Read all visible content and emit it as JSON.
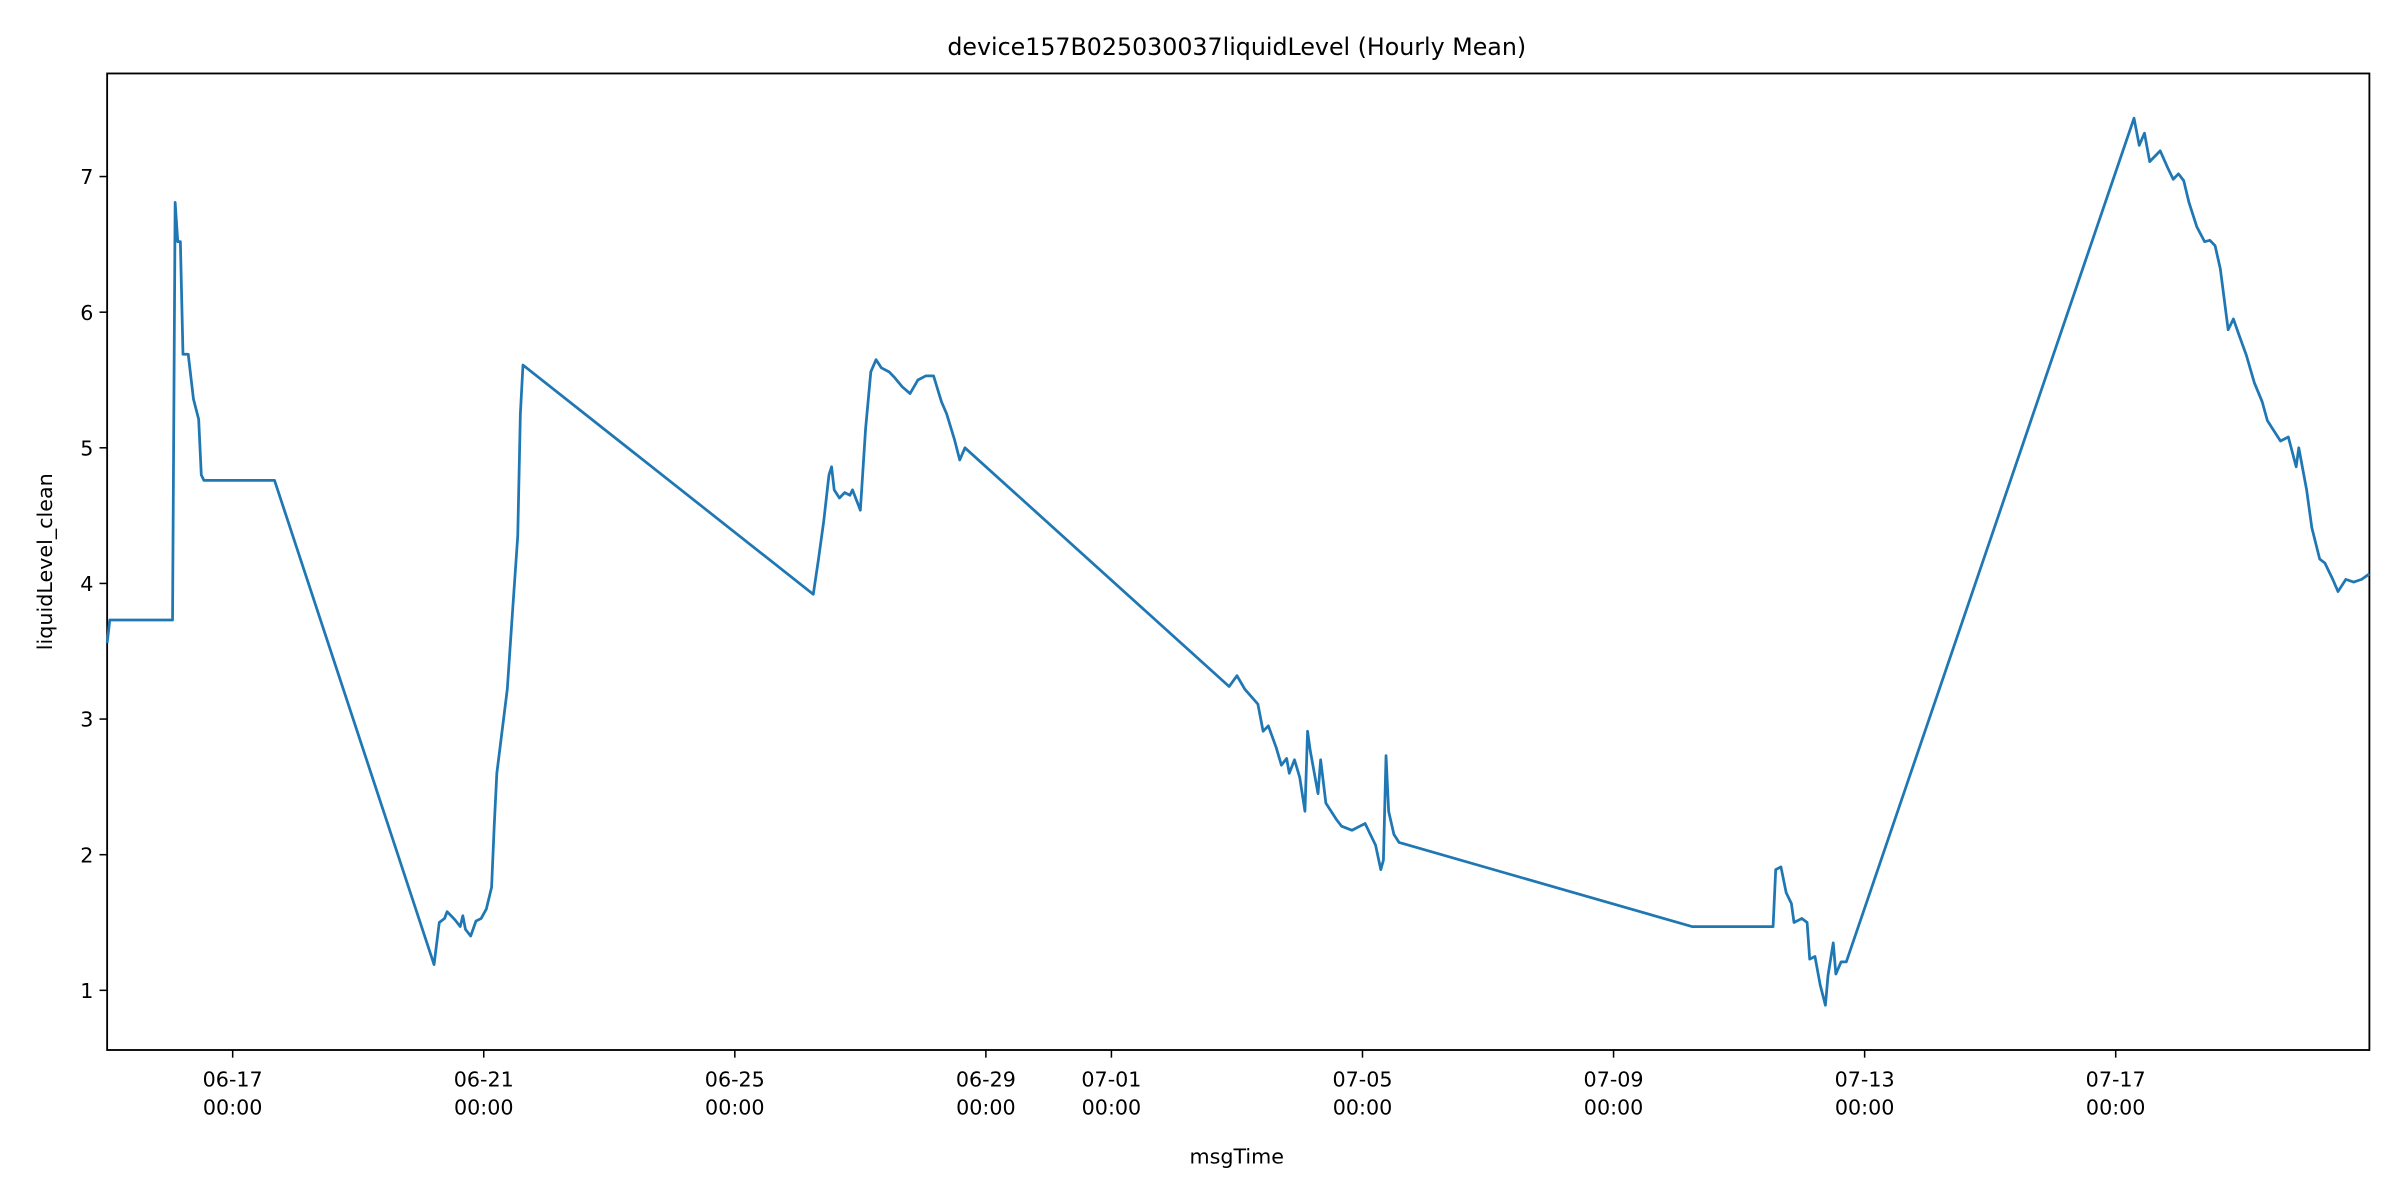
{
  "chart_data": {
    "type": "line",
    "title": "device157B025030037liquidLevel (Hourly Mean)",
    "xlabel": "msgTime",
    "ylabel": "liquidLevel_clean",
    "xlim": [
      "06-15 00:00",
      "07-21 01:00"
    ],
    "xticks": [
      "06-17 00:00",
      "06-21 00:00",
      "06-25 00:00",
      "06-29 00:00",
      "07-01 00:00",
      "07-05 00:00",
      "07-09 00:00",
      "07-13 00:00",
      "07-17 00:00"
    ],
    "ylim": [
      0.56,
      7.76
    ],
    "yticks": [
      1,
      2,
      3,
      4,
      5,
      6,
      7
    ],
    "grid": false,
    "x": [
      "06-15 00:00",
      "06-15 01:00",
      "06-16 01:00",
      "06-16 02:00",
      "06-16 03:00",
      "06-16 04:00",
      "06-16 05:00",
      "06-16 07:00",
      "06-16 09:00",
      "06-16 11:00",
      "06-16 12:00",
      "06-16 13:00",
      "06-17 16:00",
      "06-20 05:00",
      "06-20 07:00",
      "06-20 09:00",
      "06-20 10:00",
      "06-20 13:00",
      "06-20 15:00",
      "06-20 16:00",
      "06-20 17:00",
      "06-20 19:00",
      "06-20 21:00",
      "06-20 23:00",
      "06-21 01:00",
      "06-21 03:00",
      "06-21 04:00",
      "06-21 05:00",
      "06-21 07:00",
      "06-21 09:00",
      "06-21 11:00",
      "06-21 13:00",
      "06-21 14:00",
      "06-21 15:00",
      "06-26 06:00",
      "06-26 08:00",
      "06-26 10:00",
      "06-26 12:00",
      "06-26 13:00",
      "06-26 14:00",
      "06-26 16:00",
      "06-26 18:00",
      "06-26 20:00",
      "06-26 21:00",
      "06-27 00:00",
      "06-27 02:00",
      "06-27 04:00",
      "06-27 06:00",
      "06-27 08:00",
      "06-27 11:00",
      "06-27 13:00",
      "06-27 16:00",
      "06-27 19:00",
      "06-27 22:00",
      "06-28 01:00",
      "06-28 04:00",
      "06-28 07:00",
      "06-28 09:00",
      "06-28 12:00",
      "06-28 14:00",
      "06-28 16:00",
      "07-02 21:00",
      "07-03 00:00",
      "07-03 03:00",
      "07-03 08:00",
      "07-03 10:00",
      "07-03 12:00",
      "07-03 15:00",
      "07-03 17:00",
      "07-03 19:00",
      "07-03 20:00",
      "07-03 22:00",
      "07-04 00:00",
      "07-04 02:00",
      "07-04 03:00",
      "07-04 04:00",
      "07-04 07:00",
      "07-04 08:00",
      "07-04 10:00",
      "07-04 12:00",
      "07-04 14:00",
      "07-04 16:00",
      "07-04 20:00",
      "07-04 23:00",
      "07-05 01:00",
      "07-05 03:00",
      "07-05 05:00",
      "07-05 07:00",
      "07-05 08:00",
      "07-05 09:00",
      "07-05 10:00",
      "07-05 12:00",
      "07-05 14:00",
      "07-10 06:00",
      "07-11 13:00",
      "07-11 14:00",
      "07-11 16:00",
      "07-11 18:00",
      "07-11 20:00",
      "07-11 21:00",
      "07-12 00:00",
      "07-12 02:00",
      "07-12 03:00",
      "07-12 05:00",
      "07-12 07:00",
      "07-12 09:00",
      "07-12 10:00",
      "07-12 12:00",
      "07-12 13:00",
      "07-12 15:00",
      "07-12 17:00",
      "07-17 07:00",
      "07-17 09:00",
      "07-17 11:00",
      "07-17 13:00",
      "07-17 17:00",
      "07-17 20:00",
      "07-17 22:00",
      "07-18 00:00",
      "07-18 02:00",
      "07-18 04:00",
      "07-18 07:00",
      "07-18 10:00",
      "07-18 12:00",
      "07-18 14:00",
      "07-18 16:00",
      "07-18 19:00",
      "07-18 21:00",
      "07-18 23:00",
      "07-19 02:00",
      "07-19 05:00",
      "07-19 08:00",
      "07-19 10:00",
      "07-19 13:00",
      "07-19 15:00",
      "07-19 18:00",
      "07-19 21:00",
      "07-19 22:00",
      "07-20 01:00",
      "07-20 03:00",
      "07-20 06:00",
      "07-20 08:00",
      "07-20 11:00",
      "07-20 13:00",
      "07-20 16:00",
      "07-20 19:00",
      "07-20 22:00",
      "07-21 01:00"
    ],
    "series": [
      {
        "name": "liquidLevel_clean",
        "color": "#1f77b4",
        "values": [
          3.56,
          3.73,
          3.73,
          6.81,
          6.52,
          6.52,
          5.69,
          5.69,
          5.36,
          5.21,
          4.8,
          4.76,
          4.76,
          1.19,
          1.5,
          1.53,
          1.58,
          1.52,
          1.47,
          1.55,
          1.45,
          1.4,
          1.51,
          1.53,
          1.6,
          1.76,
          2.21,
          2.6,
          2.91,
          3.22,
          3.79,
          4.35,
          5.25,
          5.61,
          3.92,
          4.18,
          4.46,
          4.8,
          4.86,
          4.69,
          4.63,
          4.67,
          4.65,
          4.69,
          4.54,
          5.14,
          5.56,
          5.65,
          5.59,
          5.56,
          5.52,
          5.45,
          5.4,
          5.5,
          5.53,
          5.53,
          5.34,
          5.25,
          5.06,
          4.91,
          5.0,
          3.24,
          3.32,
          3.22,
          3.11,
          2.91,
          2.95,
          2.79,
          2.66,
          2.71,
          2.6,
          2.7,
          2.57,
          2.32,
          2.91,
          2.77,
          2.45,
          2.7,
          2.38,
          2.32,
          2.26,
          2.21,
          2.18,
          2.21,
          2.23,
          2.15,
          2.07,
          1.89,
          1.96,
          2.73,
          2.32,
          2.15,
          2.09,
          1.47,
          1.47,
          1.89,
          1.91,
          1.72,
          1.64,
          1.5,
          1.53,
          1.5,
          1.23,
          1.25,
          1.04,
          0.89,
          1.11,
          1.35,
          1.12,
          1.21,
          1.21,
          7.43,
          7.23,
          7.32,
          7.11,
          7.19,
          7.06,
          6.98,
          7.02,
          6.97,
          6.81,
          6.63,
          6.52,
          6.53,
          6.49,
          6.32,
          5.87,
          5.95,
          5.84,
          5.68,
          5.48,
          5.34,
          5.2,
          5.11,
          5.05,
          5.08,
          4.86,
          5.0,
          4.69,
          4.41,
          4.18,
          4.15,
          4.03,
          3.94,
          4.03,
          4.01,
          4.03,
          4.07
        ]
      }
    ]
  }
}
